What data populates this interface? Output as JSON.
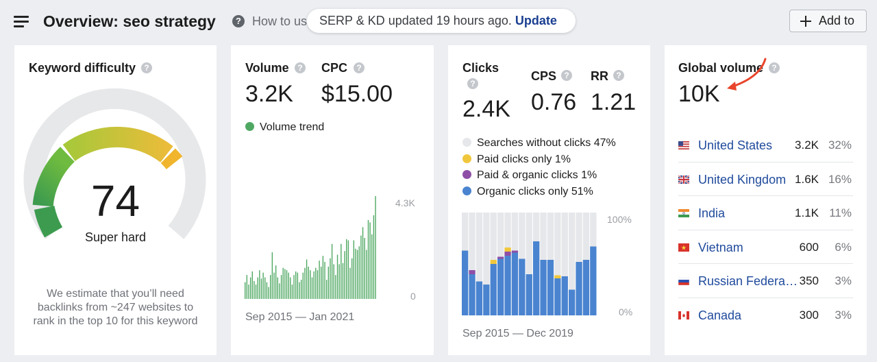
{
  "header": {
    "title": "Overview: seo strategy",
    "help_symbol": "?",
    "howto_text": "How to us",
    "update_notice": "SERP & KD updated 19 hours ago.",
    "update_link": "Update",
    "add_to_label": "Add to"
  },
  "keyword_difficulty": {
    "title": "Keyword difficulty",
    "score": "74",
    "rating": "Super hard",
    "description": "We estimate that you’ll need backlinks from ~247 websites to rank in the top 10 for this keyword",
    "gauge_fraction": 0.74
  },
  "volume": {
    "title": "Volume",
    "value": "3.2K",
    "cpc_title": "CPC",
    "cpc_value": "$15.00",
    "trend_label": "Volume trend",
    "y_max_label": "4.3K",
    "y_min_label": "0",
    "range": "Sep 2015 — Jan 2021"
  },
  "clicks": {
    "title": "Clicks",
    "value": "2.4K",
    "cps_title": "CPS",
    "cps_value": "0.76",
    "rr_title": "RR",
    "rr_value": "1.21",
    "legend": [
      {
        "label": "Searches without clicks 47%",
        "color": "#e6e7ea"
      },
      {
        "label": "Paid clicks only 1%",
        "color": "#f0c73c"
      },
      {
        "label": "Paid & organic clicks 1%",
        "color": "#8e4fa6"
      },
      {
        "label": "Organic clicks only 51%",
        "color": "#4a84d0"
      }
    ],
    "y_max_label": "100%",
    "y_min_label": "0%",
    "range": "Sep 2015 — Dec 2019"
  },
  "global_volume": {
    "title": "Global volume",
    "value": "10K",
    "countries": [
      {
        "name": "United States",
        "volume": "3.2K",
        "share": "32%",
        "flag": "us-flag-icon"
      },
      {
        "name": "United Kingdom",
        "volume": "1.6K",
        "share": "16%",
        "flag": "uk-flag-icon"
      },
      {
        "name": "India",
        "volume": "1.1K",
        "share": "11%",
        "flag": "india-flag-icon"
      },
      {
        "name": "Vietnam",
        "volume": "600",
        "share": "6%",
        "flag": "vietnam-flag-icon"
      },
      {
        "name": "Russian Federation",
        "volume": "350",
        "share": "3%",
        "flag": "russia-flag-icon"
      },
      {
        "name": "Canada",
        "volume": "300",
        "share": "3%",
        "flag": "canada-flag-icon"
      }
    ]
  },
  "colors": {
    "trend_green": "#4fa862",
    "organic_blue": "#4a84d0",
    "empty_gray": "#e6e7ea",
    "paid_yellow": "#f0c73c",
    "paid_organic_purple": "#8e4fa6",
    "link_blue": "#1f4a9c",
    "annotation_arrow": "#e8452c"
  },
  "chart_data": [
    {
      "type": "bar",
      "title": "Volume trend",
      "x_range": [
        "Sep 2015",
        "Jan 2021"
      ],
      "ylim": [
        0,
        4300
      ],
      "values": [
        700,
        1000,
        600,
        900,
        1150,
        750,
        600,
        900,
        1200,
        850,
        1100,
        900,
        700,
        500,
        1000,
        1950,
        1100,
        1400,
        900,
        650,
        1000,
        1300,
        1250,
        1200,
        1100,
        900,
        600,
        1000,
        1150,
        1100,
        700,
        800,
        1100,
        1300,
        1650,
        1350,
        1200,
        900,
        1150,
        1300,
        1200,
        1600,
        1350,
        1800,
        1550,
        800,
        1350,
        1700,
        2300,
        1450,
        1000,
        1850,
        1450,
        2300,
        1500,
        2000,
        2500,
        2450,
        1300,
        1700,
        2450,
        2100,
        2050,
        2200,
        2650,
        3000,
        2550,
        2050,
        3300,
        3200,
        2700,
        3500,
        4300
      ]
    },
    {
      "type": "bar",
      "title": "Clicks",
      "x_range": [
        "Sep 2015",
        "Dec 2019"
      ],
      "ylim": [
        0,
        100
      ],
      "series": [
        {
          "name": "Organic clicks only",
          "values": [
            63,
            40,
            33,
            30,
            50,
            55,
            58,
            61,
            55,
            40,
            72,
            54,
            54,
            36,
            38,
            25,
            52,
            54,
            67
          ]
        },
        {
          "name": "Paid & organic clicks",
          "values": [
            0,
            4,
            0,
            0,
            0,
            2,
            4,
            2,
            0,
            0,
            0,
            0,
            0,
            0,
            0,
            0,
            0,
            0,
            0
          ]
        },
        {
          "name": "Paid clicks only",
          "values": [
            0,
            0,
            0,
            0,
            4,
            0,
            4,
            0,
            0,
            0,
            0,
            0,
            0,
            3,
            0,
            0,
            0,
            0,
            0
          ]
        }
      ]
    }
  ]
}
